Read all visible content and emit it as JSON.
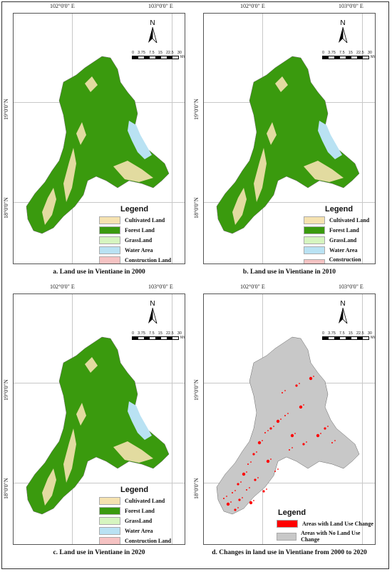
{
  "panels": [
    {
      "caption": "a. Land use in Vientiane in 2000",
      "legend_title": "Legend",
      "legend": [
        {
          "label": "Cultivated Land",
          "color": "#f5e2b0"
        },
        {
          "label": "Forest Land",
          "color": "#3a9a0e"
        },
        {
          "label": "GrassLand",
          "color": "#d6f5c0"
        },
        {
          "label": "Water Area",
          "color": "#b9e2f3"
        },
        {
          "label": "Construction Land",
          "color": "#f6c3c3"
        }
      ]
    },
    {
      "caption": "b. Land use in Vientiane in 2010",
      "legend_title": "Legend",
      "legend": [
        {
          "label": "Cultivated Land",
          "color": "#f5e2b0"
        },
        {
          "label": "Forest Land",
          "color": "#3a9a0e"
        },
        {
          "label": "GrassLand",
          "color": "#d6f5c0"
        },
        {
          "label": "Water Area",
          "color": "#b9e2f3"
        },
        {
          "label": "Construction Land",
          "color": "#f6c3c3"
        }
      ]
    },
    {
      "caption": "c. Land use in Vientiane in 2020",
      "legend_title": "Legend",
      "legend": [
        {
          "label": "Cultivated Land",
          "color": "#f5e2b0"
        },
        {
          "label": "Forest Land",
          "color": "#3a9a0e"
        },
        {
          "label": "GrassLand",
          "color": "#d6f5c0"
        },
        {
          "label": "Water Area",
          "color": "#b9e2f3"
        },
        {
          "label": "Construction Land",
          "color": "#f6c3c3"
        }
      ]
    },
    {
      "caption": "d. Changes in land use in Vientiane from 2000 to 2020",
      "legend_title": "Legend",
      "legend": [
        {
          "label": "Areas with Land Use Change",
          "color": "#ff0000"
        },
        {
          "label": "Areas with No Land Use Change",
          "color": "#c8c8c8"
        }
      ]
    }
  ],
  "coords": {
    "lon_left": "102°0'0\" E",
    "lon_right": "103°0'0\" E",
    "lat_top": "19°0'0\"N",
    "lat_bottom": "18°0'0\"N"
  },
  "north_label": "N",
  "scale": {
    "ticks": [
      "0",
      "3.75",
      "7.5",
      "15",
      "22.5",
      "30"
    ],
    "unit": "Miles"
  },
  "colors": {
    "forest": "#3a9a0e",
    "cultivated": "#f5e2b0",
    "water": "#b9e2f3",
    "nochange": "#c8c8c8",
    "change": "#ff0000"
  }
}
